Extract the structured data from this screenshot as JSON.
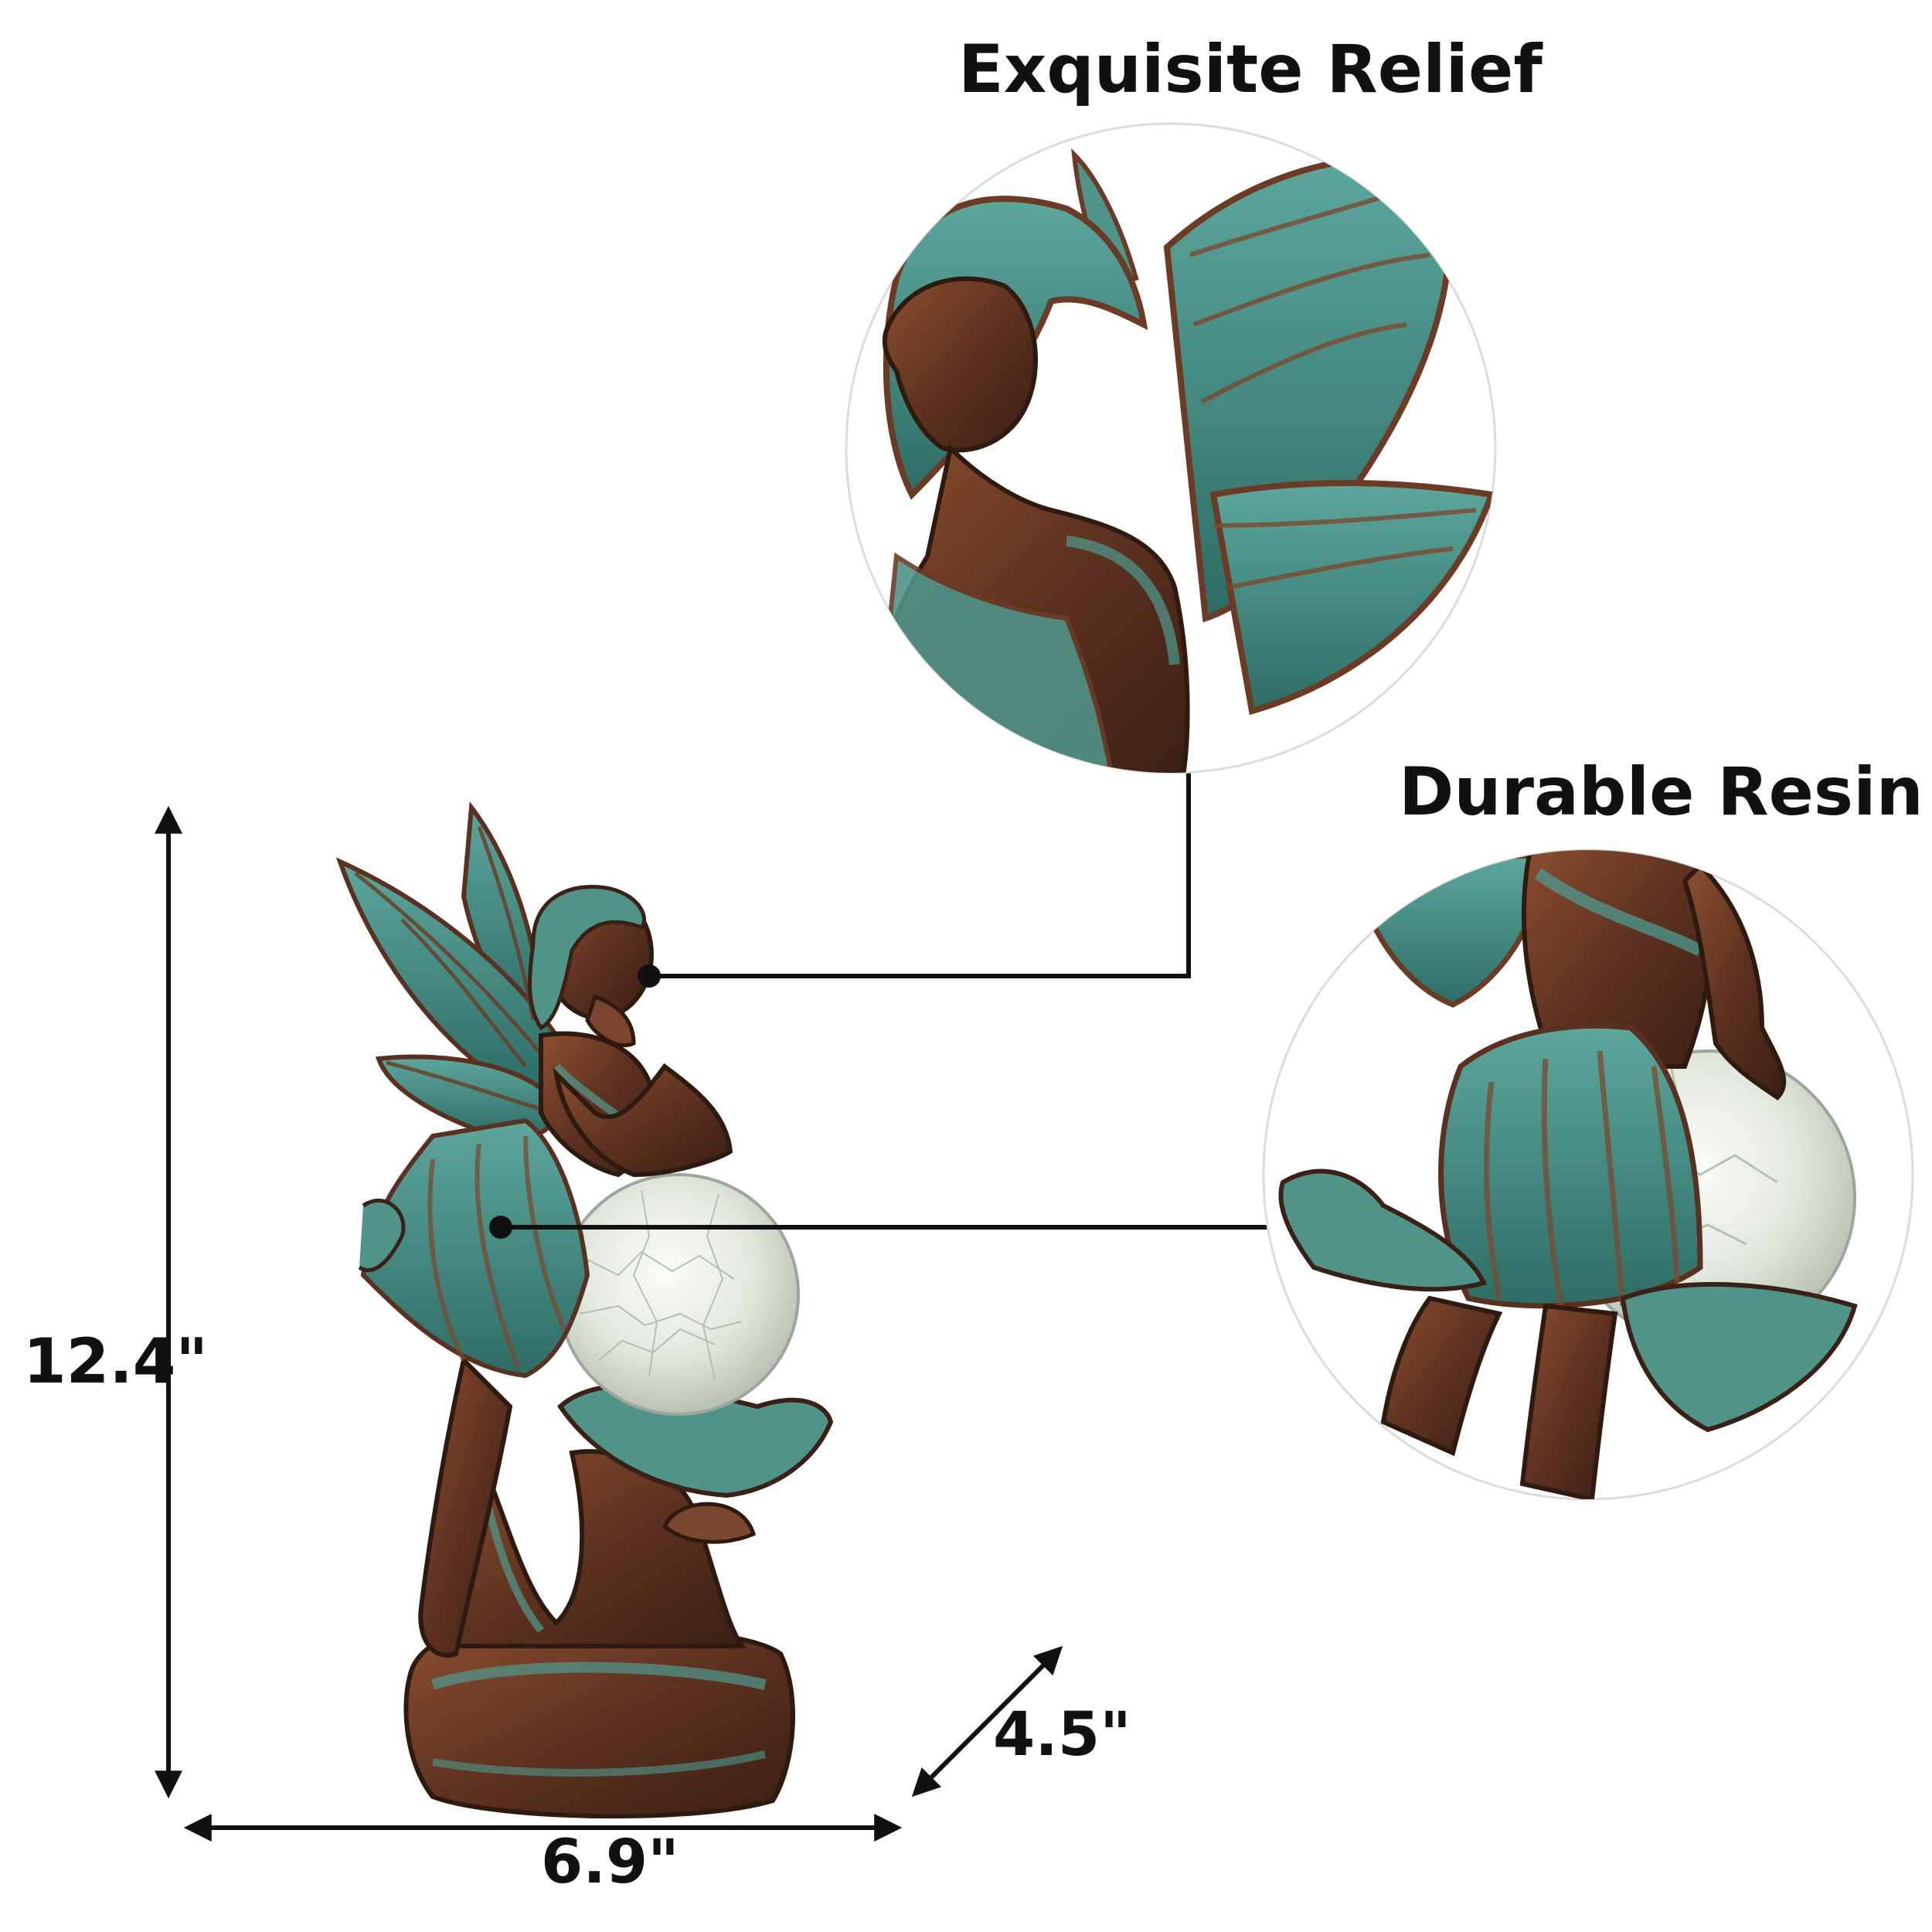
{
  "callouts": {
    "top_title": "Exquisite Relief",
    "bottom_title": "Durable Resin"
  },
  "dimensions": {
    "height": "12.4\"",
    "width": "6.9\"",
    "depth": "4.5\""
  },
  "colors": {
    "bronze": "#6b3b26",
    "bronze_light": "#a7663f",
    "patina": "#3f8c84",
    "patina_light": "#6fb5aa",
    "globe": "#e7ece4",
    "ink": "#111111"
  }
}
